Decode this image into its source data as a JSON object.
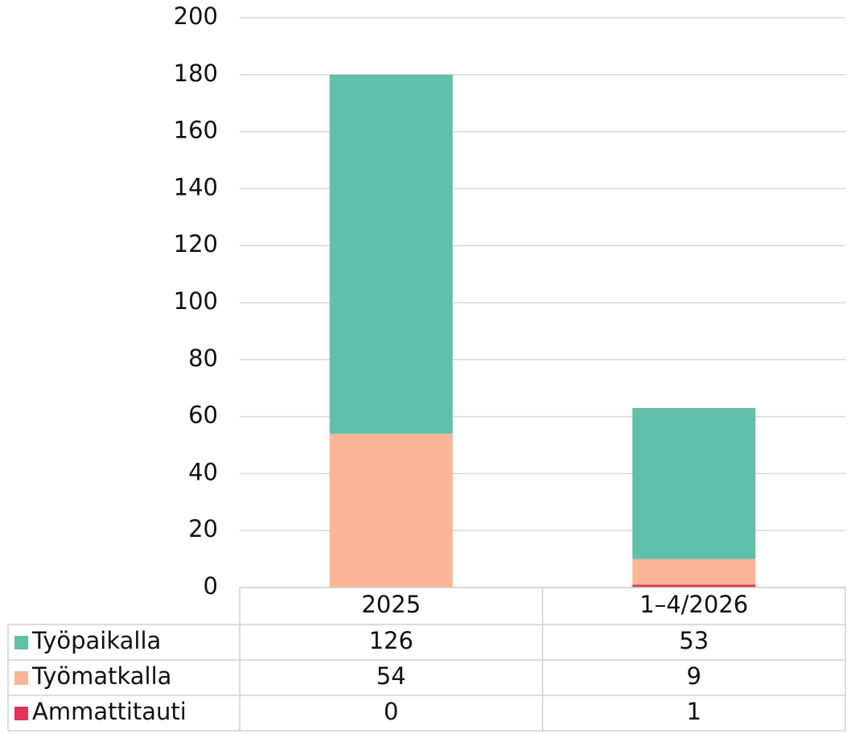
{
  "chart_data": {
    "type": "bar",
    "stacked": true,
    "categories": [
      "2025",
      "1–4/2026"
    ],
    "series": [
      {
        "name": "Työpaikalla",
        "color": "#60c0a9",
        "values": [
          126,
          53
        ]
      },
      {
        "name": "Työmatkalla",
        "color": "#fbb495",
        "values": [
          54,
          9
        ]
      },
      {
        "name": "Ammattitauti",
        "color": "#e0345a",
        "values": [
          0,
          1
        ]
      }
    ],
    "ylim": [
      0,
      200
    ],
    "yticks": [
      0,
      20,
      40,
      60,
      80,
      100,
      120,
      140,
      160,
      180,
      200
    ],
    "grid": true,
    "data_table": true
  }
}
